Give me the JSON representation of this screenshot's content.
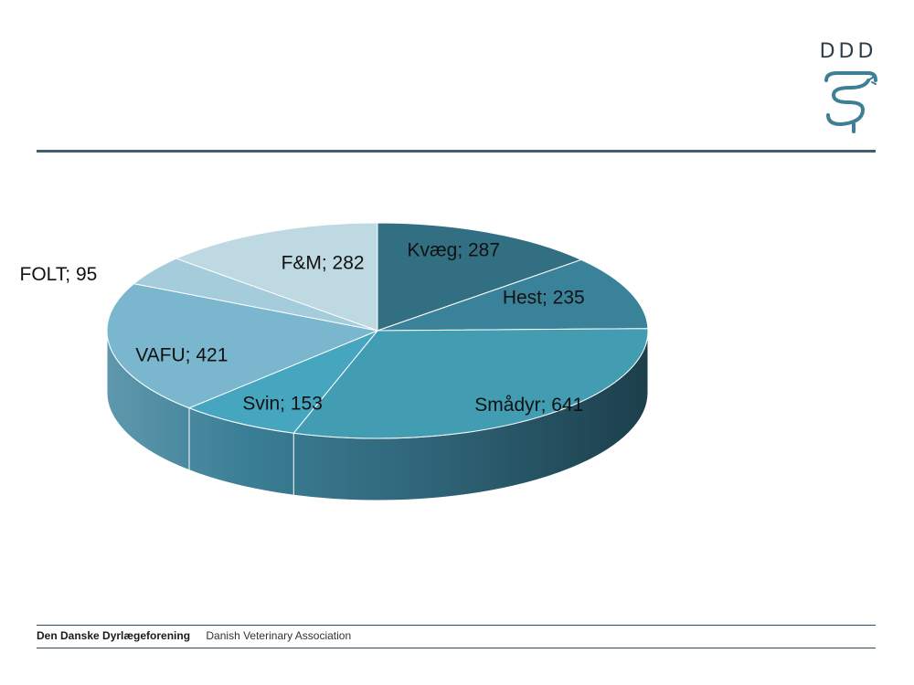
{
  "logo": {
    "text": "DDD",
    "icon": "ddd-serpent-logo"
  },
  "footer": {
    "org_danish": "Den Danske Dyrlægeforening",
    "org_english": "Danish Veterinary Association"
  },
  "chart_data": {
    "type": "pie",
    "style": "3d",
    "categories": [
      "Kvæg",
      "Hest",
      "Smådyr",
      "Svin",
      "VAFU",
      "FOLT",
      "F&M"
    ],
    "values": [
      287,
      235,
      641,
      153,
      421,
      95,
      282
    ],
    "labels": [
      "Kvæg; 287",
      "Hest; 235",
      "Smådyr; 641",
      "Svin; 153",
      "VAFU; 421",
      "FOLT; 95",
      "F&M; 282"
    ],
    "colors": [
      "#326f82",
      "#3a8299",
      "#429cb2",
      "#46a6bf",
      "#7ab6cd",
      "#a4ccda",
      "#bfd9e3"
    ],
    "title": "",
    "legend": "none"
  }
}
